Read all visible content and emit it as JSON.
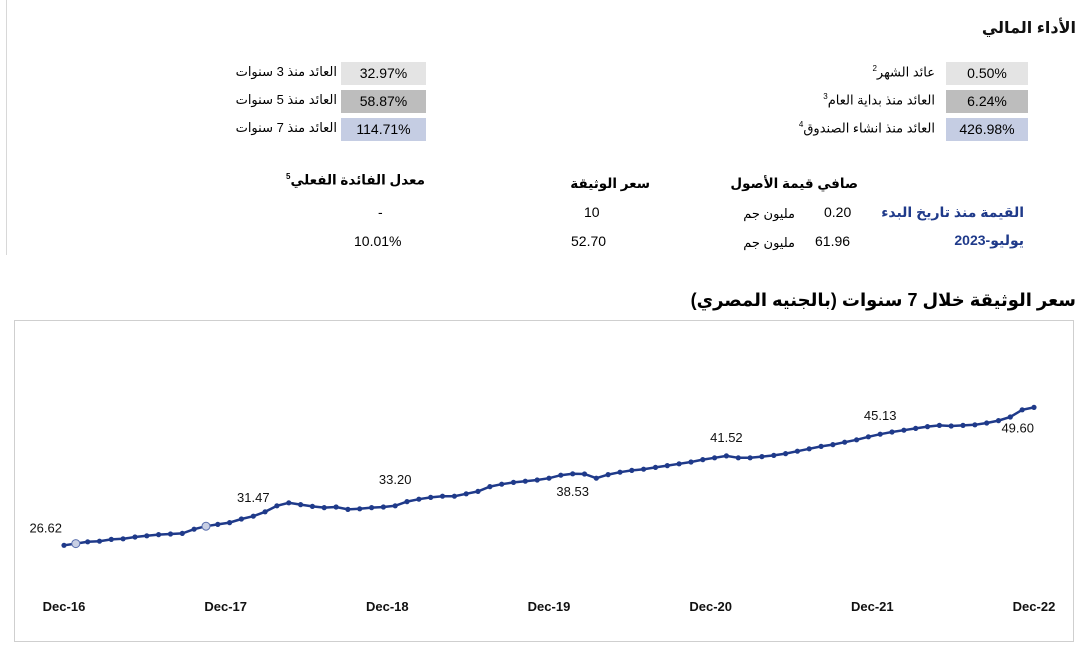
{
  "performance": {
    "title": "الأداء المالي",
    "right_items": [
      {
        "label": "عائد الشهر",
        "sup": "2",
        "value": "0.50%"
      },
      {
        "label": "العائد منذ بداية العام",
        "sup": "3",
        "value": "6.24%"
      },
      {
        "label": "العائد منذ انشاء الصندوق",
        "sup": "4",
        "value": "426.98%"
      }
    ],
    "left_items": [
      {
        "label": "العائد منذ 3 سنوات",
        "value": "32.97%"
      },
      {
        "label": "العائد منذ 5 سنوات",
        "value": "58.87%"
      },
      {
        "label": "العائد منذ 7 سنوات",
        "value": "114.71%"
      }
    ]
  },
  "summary": {
    "headers": {
      "nav": "صافي قيمة الأصول",
      "price": "سعر الوثيقة",
      "rate": "معدل الفائدة الفعلي",
      "rate_sup": "5"
    },
    "row_labels": {
      "inception": "القيمة منذ تاريخ البدء",
      "current": "يوليو-2023"
    },
    "unit": "مليون جم",
    "inception": {
      "nav": "0.20",
      "price": "10",
      "rate": "-"
    },
    "current": {
      "nav": "61.96",
      "price": "52.70",
      "rate": "10.01%"
    }
  },
  "chart_title": "سعر الوثيقة خلال 7 سنوات (بالجنيه المصري)",
  "chart_data": {
    "type": "line",
    "title": "سعر الوثيقة خلال 7 سنوات (بالجنيه المصري)",
    "x_tick_labels": [
      "Dec-16",
      "Dec-17",
      "Dec-18",
      "Dec-19",
      "Dec-20",
      "Dec-21",
      "Dec-22"
    ],
    "ylim": [
      20,
      60
    ],
    "grid": false,
    "legend": "none",
    "line_color": "#1f3a8a",
    "series": [
      {
        "values": [
          26.62,
          26.9,
          27.2,
          27.3,
          27.6,
          27.7,
          28.0,
          28.2,
          28.4,
          28.5,
          28.6,
          29.3,
          29.8,
          30.1,
          30.4,
          31.0,
          31.47,
          32.2,
          33.2,
          33.7,
          33.4,
          33.1,
          32.9,
          33.0,
          32.6,
          32.7,
          32.9,
          33.0,
          33.2,
          33.9,
          34.3,
          34.6,
          34.8,
          34.8,
          35.2,
          35.6,
          36.4,
          36.8,
          37.1,
          37.3,
          37.5,
          37.8,
          38.3,
          38.53,
          38.5,
          37.8,
          38.4,
          38.8,
          39.1,
          39.3,
          39.6,
          39.9,
          40.2,
          40.5,
          40.9,
          41.2,
          41.52,
          41.2,
          41.2,
          41.4,
          41.6,
          41.9,
          42.3,
          42.7,
          43.1,
          43.4,
          43.8,
          44.2,
          44.7,
          45.13,
          45.5,
          45.8,
          46.1,
          46.4,
          46.6,
          46.5,
          46.6,
          46.7,
          47.0,
          47.4,
          48.0,
          49.2,
          49.6
        ],
        "labeled_points": [
          {
            "index": 0,
            "label": "26.62"
          },
          {
            "index": 16,
            "label": "31.47"
          },
          {
            "index": 28,
            "label": "33.20"
          },
          {
            "index": 43,
            "label": "38.53"
          },
          {
            "index": 56,
            "label": "41.52"
          },
          {
            "index": 69,
            "label": "45.13"
          },
          {
            "index": 82,
            "label": "49.60"
          }
        ]
      }
    ]
  }
}
